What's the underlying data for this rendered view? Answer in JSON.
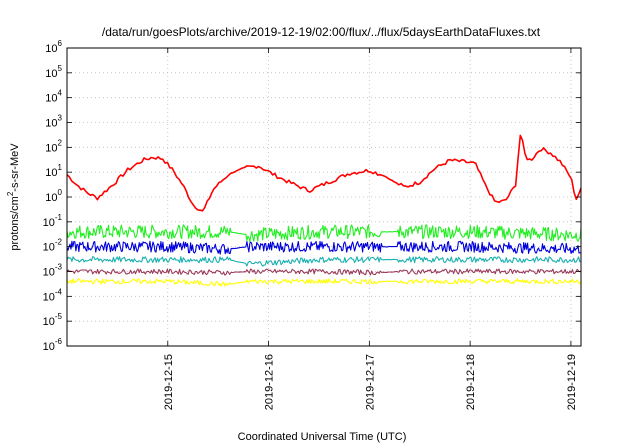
{
  "chart_data": {
    "type": "line",
    "title": "/data/run/goesPlots/archive/2019-12-19/02:00/flux/../flux/5daysEarthDataFluxes.txt",
    "xlabel": "Coordinated Universal Time (UTC)",
    "ylabel": "protons/cm²-s-sr-MeV",
    "yscale": "log",
    "ylim": [
      1e-06,
      1000000.0
    ],
    "xlim": [
      14.0,
      19.1
    ],
    "x_units": "days of 2019-12 (UTC)",
    "grid": true,
    "legend": "none",
    "y_tick_labels": [
      {
        "base": "10",
        "exp": "-6",
        "value": 1e-06
      },
      {
        "base": "10",
        "exp": "-5",
        "value": 1e-05
      },
      {
        "base": "10",
        "exp": "-4",
        "value": 0.0001
      },
      {
        "base": "10",
        "exp": "-3",
        "value": 0.001
      },
      {
        "base": "10",
        "exp": "-2",
        "value": 0.01
      },
      {
        "base": "10",
        "exp": "-1",
        "value": 0.1
      },
      {
        "base": "10",
        "exp": "0",
        "value": 1
      },
      {
        "base": "10",
        "exp": "1",
        "value": 10
      },
      {
        "base": "10",
        "exp": "2",
        "value": 100
      },
      {
        "base": "10",
        "exp": "3",
        "value": 1000
      },
      {
        "base": "10",
        "exp": "4",
        "value": 10000
      },
      {
        "base": "10",
        "exp": "5",
        "value": 100000
      },
      {
        "base": "10",
        "exp": "6",
        "value": 1000000
      }
    ],
    "x_tick_labels": [
      {
        "label": "2019-12-15",
        "value": 15
      },
      {
        "label": "2019-12-16",
        "value": 16
      },
      {
        "label": "2019-12-17",
        "value": 17
      },
      {
        "label": "2019-12-18",
        "value": 18
      },
      {
        "label": "2019-12-19",
        "value": 19
      }
    ],
    "series": [
      {
        "color": "#ff0000",
        "x": [
          14.0,
          14.1,
          14.2,
          14.3,
          14.45,
          14.6,
          14.75,
          14.85,
          14.95,
          15.05,
          15.15,
          15.25,
          15.35,
          15.45,
          15.6,
          15.75,
          15.9,
          16.05,
          16.2,
          16.4,
          16.6,
          16.8,
          17.0,
          17.15,
          17.25,
          17.35,
          17.5,
          17.65,
          17.8,
          17.95,
          18.05,
          18.15,
          18.25,
          18.35,
          18.45,
          18.5,
          18.55,
          18.6,
          18.7,
          18.8,
          18.9,
          19.0,
          19.05,
          19.1
        ],
        "y": [
          8,
          3,
          1.5,
          0.9,
          3,
          12,
          30,
          40,
          35,
          12,
          3,
          0.5,
          0.25,
          2,
          8,
          15,
          18,
          8,
          4,
          1.8,
          4,
          9,
          12,
          7,
          4,
          2.5,
          4,
          14,
          30,
          26,
          22,
          3,
          0.6,
          0.7,
          3,
          400,
          40,
          30,
          90,
          60,
          25,
          6,
          0.8,
          2
        ]
      },
      {
        "color": "#22ee22",
        "x": [
          14.0,
          15.0,
          15.6,
          15.8,
          16.5,
          17.1,
          17.3,
          18.0,
          19.1
        ],
        "y": [
          0.04,
          0.04,
          0.04,
          0.03,
          0.04,
          0.04,
          0.04,
          0.04,
          0.03
        ]
      },
      {
        "color": "#0000dd",
        "x": [
          14.0,
          15.0,
          15.6,
          15.8,
          16.5,
          17.1,
          17.3,
          18.0,
          19.1
        ],
        "y": [
          0.01,
          0.01,
          0.008,
          0.01,
          0.01,
          0.01,
          0.01,
          0.01,
          0.008
        ]
      },
      {
        "color": "#1ab0b0",
        "x": [
          14.0,
          15.0,
          15.6,
          15.8,
          16.5,
          17.1,
          17.3,
          18.0,
          19.1
        ],
        "y": [
          0.003,
          0.003,
          0.003,
          0.002,
          0.003,
          0.003,
          0.003,
          0.003,
          0.003
        ]
      },
      {
        "color": "#9b3a5a",
        "x": [
          14.0,
          15.0,
          15.6,
          15.8,
          16.5,
          17.1,
          17.3,
          18.0,
          19.1
        ],
        "y": [
          0.001,
          0.001,
          0.0009,
          0.001,
          0.001,
          0.0009,
          0.001,
          0.001,
          0.001
        ]
      },
      {
        "color": "#ffff00",
        "x": [
          14.0,
          15.0,
          15.6,
          15.8,
          16.5,
          17.1,
          17.3,
          18.0,
          19.1
        ],
        "y": [
          0.0004,
          0.0004,
          0.0003,
          0.0004,
          0.0004,
          0.0004,
          0.0004,
          0.0004,
          0.0004
        ]
      }
    ]
  }
}
